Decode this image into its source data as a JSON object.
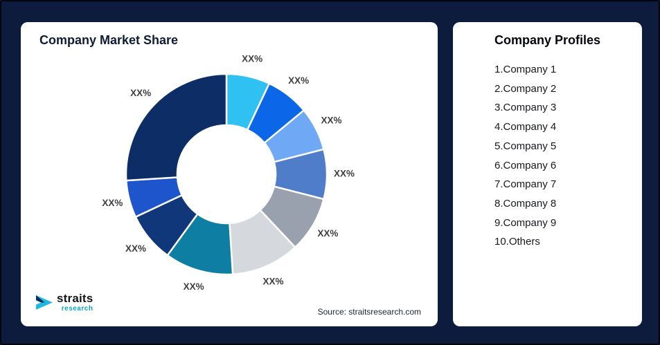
{
  "page": {
    "background_color": "#0d1c3c",
    "card_color": "#ffffff"
  },
  "left_card": {
    "title": "Company Market Share",
    "source": "Source: straitsresearch.com",
    "logo": {
      "name": "straits",
      "sub": "research",
      "accent_color": "#18bede"
    }
  },
  "right_card": {
    "title": "Company Profiles",
    "items": [
      "1.Company 1",
      "2.Company 2",
      "3.Company 3",
      "4.Company 4",
      "5.Company 5",
      "6.Company 6",
      "7.Company 7",
      "8.Company 8",
      "9.Company 9",
      "10.Others"
    ]
  },
  "chart_data": {
    "type": "pie",
    "variant": "donut",
    "title": "Company Market Share",
    "legend_position": "none",
    "value_label_text": "XX%",
    "start_angle_deg": 0,
    "direction": "clockwise",
    "inner_radius_ratio": 0.49,
    "segments": [
      {
        "name": "Company 1",
        "label": "XX%",
        "est_value_pct": 7,
        "color": "#2fc1f2"
      },
      {
        "name": "Company 2",
        "label": "XX%",
        "est_value_pct": 7,
        "color": "#0b67e8"
      },
      {
        "name": "Company 3",
        "label": "XX%",
        "est_value_pct": 7,
        "color": "#6fa9f6"
      },
      {
        "name": "Company 4",
        "label": "XX%",
        "est_value_pct": 8,
        "color": "#507dc9"
      },
      {
        "name": "Company 5",
        "label": "XX%",
        "est_value_pct": 9,
        "color": "#99a1ae"
      },
      {
        "name": "Company 6",
        "label": "XX%",
        "est_value_pct": 11,
        "color": "#d5d8dd"
      },
      {
        "name": "Company 7",
        "label": "XX%",
        "est_value_pct": 11,
        "color": "#0e7ea3"
      },
      {
        "name": "Company 8",
        "label": "XX%",
        "est_value_pct": 8,
        "color": "#10377a"
      },
      {
        "name": "Company 9",
        "label": "XX%",
        "est_value_pct": 6,
        "color": "#1e55cd"
      },
      {
        "name": "Others",
        "label": "XX%",
        "est_value_pct": 26,
        "color": "#0c2d66"
      }
    ]
  }
}
